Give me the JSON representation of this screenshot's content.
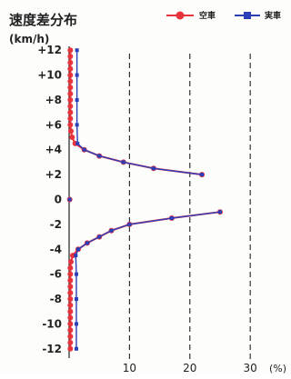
{
  "chart_data": {
    "type": "line",
    "title": "速度差分布",
    "ylabel": "(km/h)",
    "x_unit": "(%)",
    "xlim": [
      0,
      36
    ],
    "ylim": [
      -12.6,
      12.6
    ],
    "x_ticks": [
      10,
      20,
      30
    ],
    "y_ticks": [
      "+12",
      "+10",
      "+8",
      "+6",
      "+4",
      "+2",
      "0",
      "-2",
      "-4",
      "-6",
      "-8",
      "-10",
      "-12"
    ],
    "y_tick_values": [
      12,
      10,
      8,
      6,
      4,
      2,
      0,
      -2,
      -4,
      -6,
      -8,
      -10,
      -12
    ],
    "grid_x": true,
    "legend_position": "top-right",
    "series": [
      {
        "name": "空車",
        "color": "#e8323c",
        "marker": "circle",
        "points": [
          [
            0.2,
            12
          ],
          [
            0.2,
            11.5
          ],
          [
            0.2,
            11
          ],
          [
            0.2,
            10.5
          ],
          [
            0.2,
            10
          ],
          [
            0.2,
            9.5
          ],
          [
            0.2,
            9
          ],
          [
            0.2,
            8.5
          ],
          [
            0.2,
            8
          ],
          [
            0.2,
            7.5
          ],
          [
            0.2,
            7
          ],
          [
            0.2,
            6.5
          ],
          [
            0.2,
            6
          ],
          [
            0.3,
            5.5
          ],
          [
            0.5,
            5
          ],
          [
            1.0,
            4.5
          ],
          [
            2.5,
            4
          ],
          [
            5,
            3.5
          ],
          [
            9,
            3
          ],
          [
            14,
            2.5
          ],
          [
            22,
            2
          ],
          [
            0.1,
            0
          ],
          [
            25,
            -1
          ],
          [
            17,
            -1.5
          ],
          [
            10,
            -2
          ],
          [
            7,
            -2.5
          ],
          [
            5,
            -3
          ],
          [
            3,
            -3.5
          ],
          [
            1.5,
            -4
          ],
          [
            0.6,
            -4.5
          ],
          [
            0.3,
            -5
          ],
          [
            0.2,
            -5.5
          ],
          [
            0.2,
            -6
          ],
          [
            0.2,
            -6.5
          ],
          [
            0.2,
            -7
          ],
          [
            0.2,
            -7.5
          ],
          [
            0.2,
            -8
          ],
          [
            0.2,
            -8.5
          ],
          [
            0.2,
            -9
          ],
          [
            0.2,
            -9.5
          ],
          [
            0.2,
            -10
          ],
          [
            0.2,
            -10.5
          ],
          [
            0.2,
            -11
          ],
          [
            0.2,
            -11.5
          ],
          [
            0.2,
            -12
          ]
        ]
      },
      {
        "name": "実車",
        "color": "#2b3fb8",
        "marker": "square",
        "points": [
          [
            1.3,
            12
          ],
          [
            1.3,
            10
          ],
          [
            1.3,
            8
          ],
          [
            1.3,
            6
          ],
          [
            1.4,
            4.5
          ],
          [
            2.5,
            4
          ],
          [
            5,
            3.5
          ],
          [
            9,
            3
          ],
          [
            14,
            2.5
          ],
          [
            22,
            2
          ],
          [
            0.1,
            0
          ],
          [
            25,
            -1
          ],
          [
            17,
            -1.5
          ],
          [
            10,
            -2
          ],
          [
            7,
            -2.5
          ],
          [
            5,
            -3
          ],
          [
            3,
            -3.5
          ],
          [
            1.5,
            -4
          ],
          [
            1.1,
            -4.5
          ],
          [
            1.2,
            -6
          ],
          [
            1.2,
            -8
          ],
          [
            1.2,
            -10
          ],
          [
            1.2,
            -12
          ]
        ]
      }
    ]
  }
}
